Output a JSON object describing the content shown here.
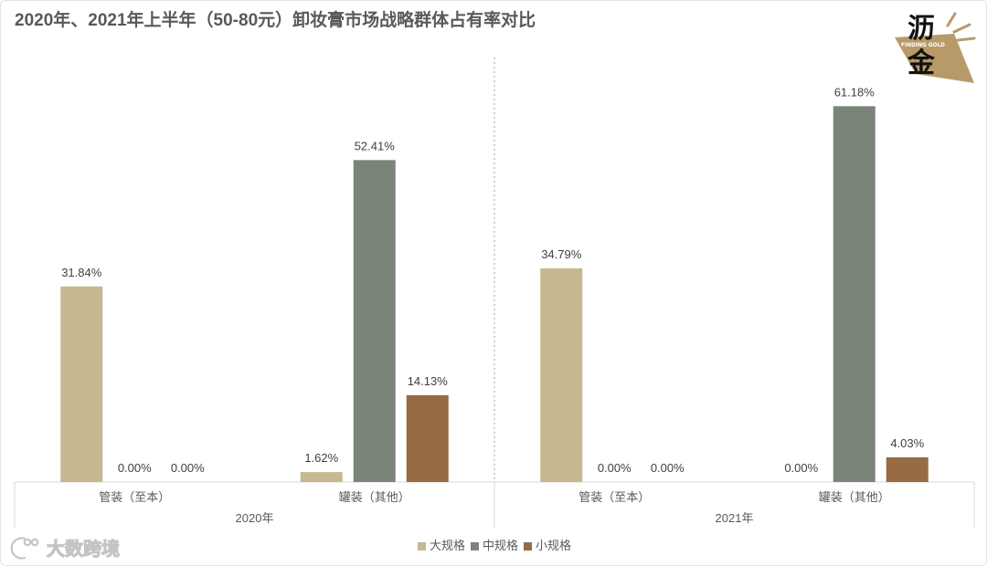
{
  "logo": {
    "char_top": "沥",
    "char_bottom": "金",
    "tagline": "FINDING GOLD",
    "color": "#B89A6A"
  },
  "watermark": {
    "text": "大数跨境"
  },
  "chart_data": {
    "type": "bar",
    "title": "2020年、2021年上半年（50-80元）卸妆膏市场战略群体占有率对比",
    "groups": [
      {
        "label": "2020年",
        "categories": [
          "管装（至本）",
          "罐装（其他）"
        ]
      },
      {
        "label": "2021年",
        "categories": [
          "管装（至本）",
          "罐装（其他）"
        ]
      }
    ],
    "series": [
      {
        "name": "大规格",
        "color": "#C8B891",
        "values": [
          31.84,
          1.62,
          34.79,
          0.0
        ],
        "data_labels": [
          "31.84%",
          "1.62%",
          "34.79%",
          "0.00%"
        ]
      },
      {
        "name": "中规格",
        "color": "#7A8479",
        "values": [
          0.0,
          52.41,
          0.0,
          61.18
        ],
        "data_labels": [
          "0.00%",
          "52.41%",
          "0.00%",
          "61.18%"
        ]
      },
      {
        "name": "小规格",
        "color": "#966B45",
        "values": [
          0.0,
          14.13,
          0.0,
          4.03
        ],
        "data_labels": [
          "0.00%",
          "14.13%",
          "0.00%",
          "4.03%"
        ]
      }
    ],
    "ylim": [
      0,
      70
    ],
    "y_axis_visible": false,
    "grid": false,
    "legend": "bottom"
  }
}
